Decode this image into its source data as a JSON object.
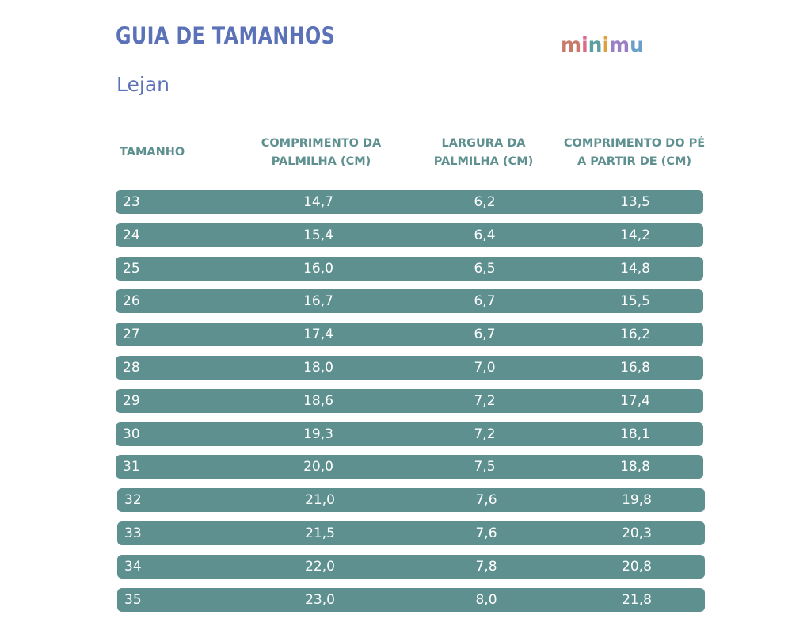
{
  "header": {
    "title": "GUIA DE TAMANHOS",
    "subtitle": "Lejan",
    "logo_text": "minimu",
    "logo_colors": [
      "#c8796a",
      "#d96a8a",
      "#5b9fa0",
      "#e0a040",
      "#9b7fc4",
      "#6aa0c8"
    ]
  },
  "table": {
    "columns": [
      "TAMANHO",
      "COMPRIMENTO DA PALMILHA (CM)",
      "LARGURA DA PALMILHA (CM)",
      "COMPRIMENTO DO PÉ A PARTIR DE (CM)"
    ],
    "rows": [
      [
        "23",
        "14,7",
        "6,2",
        "13,5"
      ],
      [
        "24",
        "15,4",
        "6,4",
        "14,2"
      ],
      [
        "25",
        "16,0",
        "6,5",
        "14,8"
      ],
      [
        "26",
        "16,7",
        "6,7",
        "15,5"
      ],
      [
        "27",
        "17,4",
        "6,7",
        "16,2"
      ],
      [
        "28",
        "18,0",
        "7,0",
        "16,8"
      ],
      [
        "29",
        "18,6",
        "7,2",
        "17,4"
      ],
      [
        "30",
        "19,3",
        "7,2",
        "18,1"
      ],
      [
        "31",
        "20,0",
        "7,5",
        "18,8"
      ],
      [
        "32",
        "21,0",
        "7,6",
        "19,8"
      ],
      [
        "33",
        "21,5",
        "7,6",
        "20,3"
      ],
      [
        "34",
        "22,0",
        "7,8",
        "20,8"
      ],
      [
        "35",
        "23,0",
        "8,0",
        "21,8"
      ]
    ]
  },
  "colors": {
    "title": "#5b72b8",
    "header_text": "#5f9090",
    "row_background": "#5f9090",
    "row_text": "#ffffff"
  }
}
